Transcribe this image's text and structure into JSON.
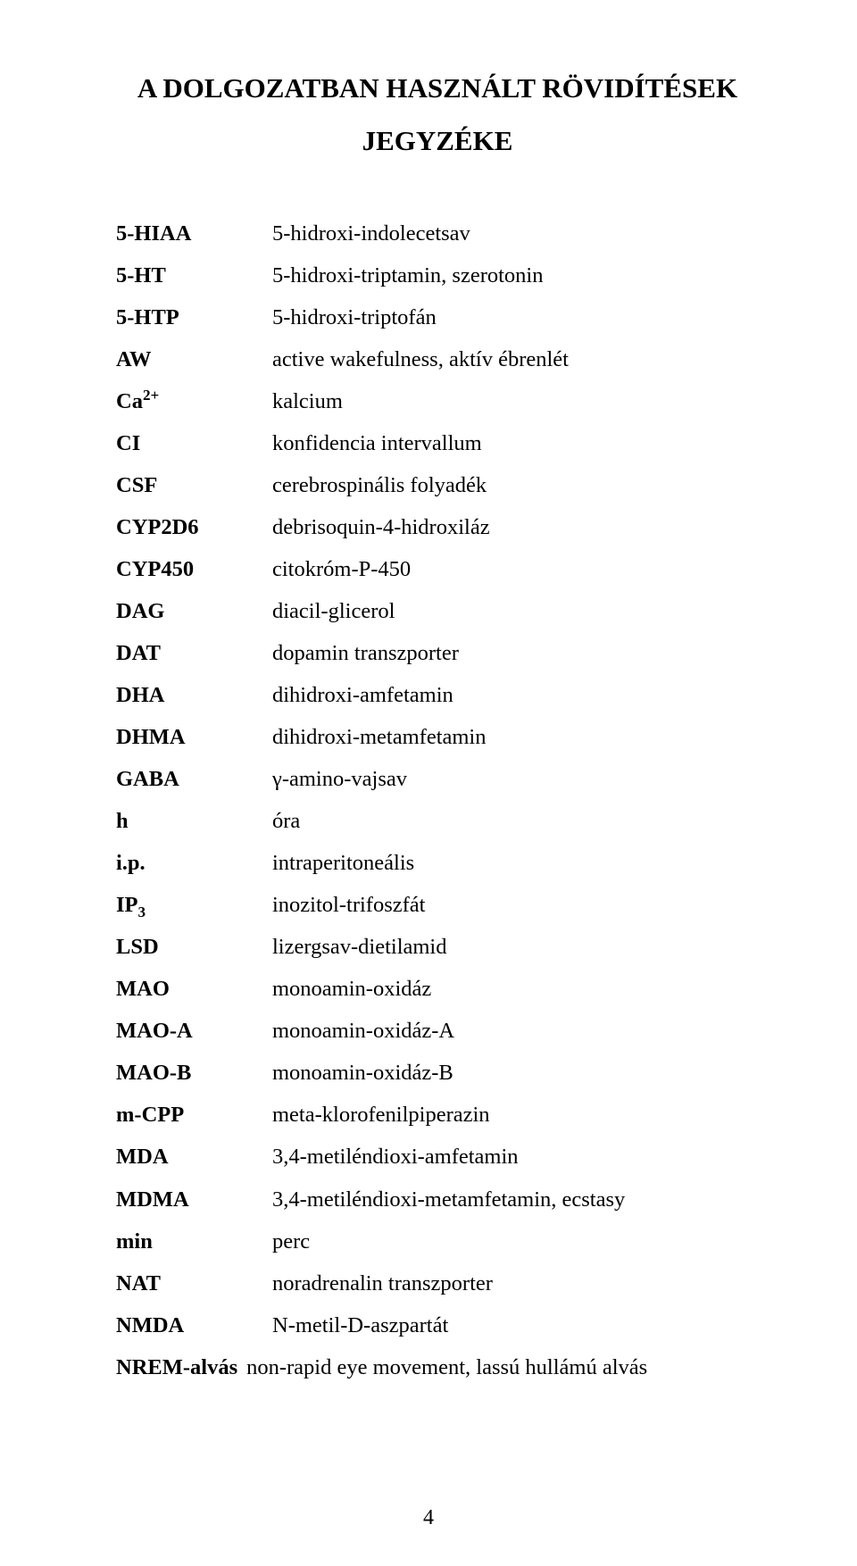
{
  "title_line1": "A DOLGOZATBAN HASZNÁLT RÖVIDÍTÉSEK",
  "title_line2": "JEGYZÉKE",
  "page_number": "4",
  "items": [
    {
      "abbr": "5-HIAA",
      "def": "5-hidroxi-indolecetsav"
    },
    {
      "abbr": "5-HT",
      "def": "5-hidroxi-triptamin, szerotonin"
    },
    {
      "abbr": "5-HTP",
      "def": "5-hidroxi-triptofán"
    },
    {
      "abbr": "AW",
      "def": "active wakefulness, aktív ébrenlét"
    },
    {
      "abbr": "Ca",
      "abbr_sup": "2+",
      "def": "kalcium"
    },
    {
      "abbr": "CI",
      "def": "konfidencia intervallum"
    },
    {
      "abbr": "CSF",
      "def": "cerebrospinális folyadék"
    },
    {
      "abbr": "CYP2D6",
      "def": "debrisoquin-4-hidroxiláz"
    },
    {
      "abbr": "CYP450",
      "def": "citokróm-P-450"
    },
    {
      "abbr": "DAG",
      "def": "diacil-glicerol"
    },
    {
      "abbr": "DAT",
      "def": "dopamin transzporter"
    },
    {
      "abbr": "DHA",
      "def": "dihidroxi-amfetamin"
    },
    {
      "abbr": "DHMA",
      "def": "dihidroxi-metamfetamin"
    },
    {
      "abbr": "GABA",
      "def": "γ-amino-vajsav"
    },
    {
      "abbr": "h",
      "def": "óra"
    },
    {
      "abbr": "i.p.",
      "def": "intraperitoneális"
    },
    {
      "abbr": "IP",
      "abbr_sub": "3",
      "def": "inozitol-trifoszfát"
    },
    {
      "abbr": "LSD",
      "def": "lizergsav-dietilamid"
    },
    {
      "abbr": "MAO",
      "def": "monoamin-oxidáz"
    },
    {
      "abbr": "MAO-A",
      "def": "monoamin-oxidáz-A"
    },
    {
      "abbr": "MAO-B",
      "def": "monoamin-oxidáz-B"
    },
    {
      "abbr": "m-CPP",
      "def": "meta-klorofenilpiperazin"
    },
    {
      "abbr": "MDA",
      "def": "3,4-metiléndioxi-amfetamin"
    },
    {
      "abbr": "MDMA",
      "def": "3,4-metiléndioxi-metamfetamin, ecstasy"
    },
    {
      "abbr": "min",
      "def": "perc"
    },
    {
      "abbr": "NAT",
      "def": "noradrenalin transzporter"
    },
    {
      "abbr": "NMDA",
      "def": "N-metil-D-aszpartát"
    },
    {
      "abbr": "NREM-alvás",
      "def": "non-rapid eye movement, lassú hullámú alvás",
      "inline": true
    }
  ]
}
